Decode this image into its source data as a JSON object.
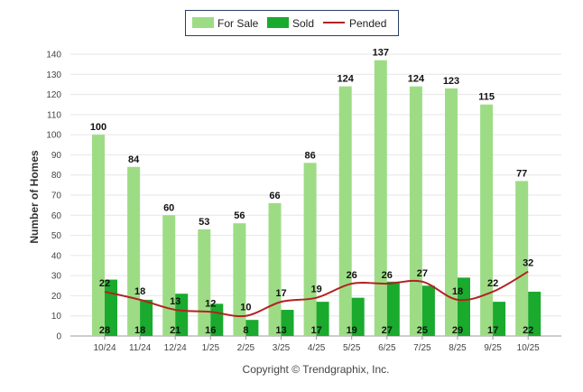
{
  "chart_data": {
    "type": "bar",
    "categories": [
      "10/24",
      "11/24",
      "12/24",
      "1/25",
      "2/25",
      "3/25",
      "4/25",
      "5/25",
      "6/25",
      "7/25",
      "8/25",
      "9/25",
      "10/25"
    ],
    "series": [
      {
        "name": "For Sale",
        "type": "bar",
        "color": "#9ddc85",
        "values": [
          100,
          84,
          60,
          53,
          56,
          66,
          86,
          124,
          137,
          124,
          123,
          115,
          77
        ]
      },
      {
        "name": "Sold",
        "type": "bar",
        "color": "#1aaa2e",
        "values": [
          28,
          18,
          21,
          16,
          8,
          13,
          17,
          19,
          27,
          25,
          29,
          17,
          22
        ]
      },
      {
        "name": "Pended",
        "type": "line",
        "color": "#b22222",
        "values": [
          22,
          18,
          13,
          12,
          10,
          17,
          19,
          26,
          26,
          27,
          18,
          22,
          32
        ]
      }
    ],
    "ylabel": "Number of Homes",
    "ylim": [
      0,
      140
    ],
    "yticks": [
      0,
      10,
      20,
      30,
      40,
      50,
      60,
      70,
      80,
      90,
      100,
      110,
      120,
      130,
      140
    ],
    "grid": true,
    "legend_position": "top-center",
    "credit": "Copyright © Trendgraphix, Inc."
  }
}
